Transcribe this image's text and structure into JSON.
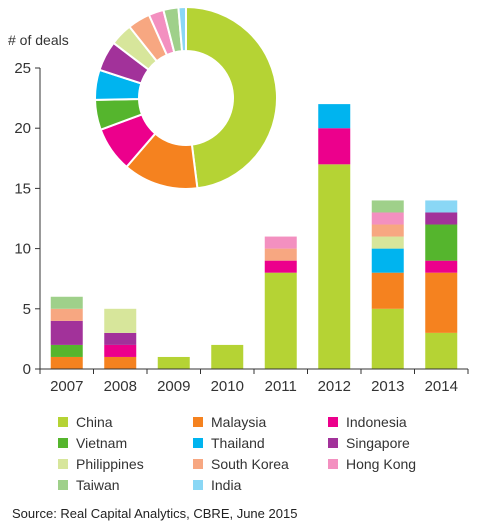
{
  "chart_data": {
    "type": "bar",
    "stacked": true,
    "ylabel": "# of deals",
    "ylim": [
      0,
      25
    ],
    "yticks": [
      0,
      5,
      10,
      15,
      20,
      25
    ],
    "categories": [
      "2007",
      "2008",
      "2009",
      "2010",
      "2011",
      "2012",
      "2013",
      "2014"
    ],
    "series": [
      {
        "name": "China",
        "color": "#b5d334",
        "values": [
          0,
          0,
          1,
          2,
          8,
          17,
          5,
          3
        ]
      },
      {
        "name": "Malaysia",
        "color": "#f5821f",
        "values": [
          1,
          1,
          0,
          0,
          0,
          0,
          3,
          5
        ]
      },
      {
        "name": "Indonesia",
        "color": "#ec008c",
        "values": [
          0,
          1,
          0,
          0,
          1,
          3,
          0,
          1
        ]
      },
      {
        "name": "Vietnam",
        "color": "#55b52d",
        "values": [
          1,
          0,
          0,
          0,
          0,
          0,
          0,
          3
        ]
      },
      {
        "name": "Thailand",
        "color": "#00b4ef",
        "values": [
          0,
          0,
          0,
          0,
          0,
          2,
          2,
          0
        ]
      },
      {
        "name": "Singapore",
        "color": "#a2329a",
        "values": [
          2,
          1,
          0,
          0,
          0,
          0,
          0,
          1
        ]
      },
      {
        "name": "Philippines",
        "color": "#d7e69b",
        "values": [
          0,
          2,
          0,
          0,
          0,
          0,
          1,
          0
        ]
      },
      {
        "name": "South Korea",
        "color": "#f7a781",
        "values": [
          1,
          0,
          0,
          0,
          1,
          0,
          1,
          0
        ]
      },
      {
        "name": "Hong Kong",
        "color": "#f390c0",
        "values": [
          0,
          0,
          0,
          0,
          1,
          0,
          1,
          0
        ]
      },
      {
        "name": "Taiwan",
        "color": "#9fd08a",
        "values": [
          1,
          0,
          0,
          0,
          0,
          0,
          1,
          0
        ]
      },
      {
        "name": "India",
        "color": "#8ad7f5",
        "values": [
          0,
          0,
          0,
          0,
          0,
          0,
          0,
          1
        ]
      }
    ],
    "donut": {
      "slices": [
        {
          "name": "China",
          "value": 36
        },
        {
          "name": "Malaysia",
          "value": 10
        },
        {
          "name": "Indonesia",
          "value": 6
        },
        {
          "name": "Vietnam",
          "value": 4
        },
        {
          "name": "Thailand",
          "value": 4
        },
        {
          "name": "Singapore",
          "value": 4
        },
        {
          "name": "Philippines",
          "value": 3
        },
        {
          "name": "South Korea",
          "value": 3
        },
        {
          "name": "Hong Kong",
          "value": 2
        },
        {
          "name": "Taiwan",
          "value": 2
        },
        {
          "name": "India",
          "value": 1
        }
      ]
    }
  },
  "source": "Source: Real Capital Analytics, CBRE, June 2015"
}
